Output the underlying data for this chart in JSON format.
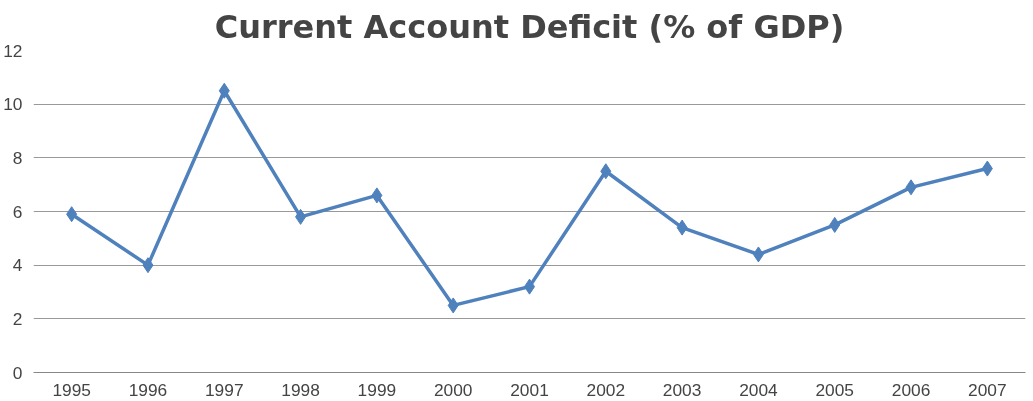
{
  "chart_data": {
    "type": "line",
    "title": "Current Account Deficit (% of GDP)",
    "categories": [
      "1995",
      "1996",
      "1997",
      "1998",
      "1999",
      "2000",
      "2001",
      "2002",
      "2003",
      "2004",
      "2005",
      "2006",
      "2007"
    ],
    "series": [
      {
        "color": "#4f81bd",
        "values": [
          5.9,
          4.0,
          10.5,
          5.8,
          6.6,
          2.5,
          3.2,
          7.5,
          5.4,
          4.4,
          5.5,
          6.9,
          7.6
        ]
      }
    ],
    "ylim": [
      0,
      12
    ],
    "yticks": [
      0,
      2,
      4,
      6,
      8,
      10,
      12
    ],
    "grid": "y",
    "marker": "diamond",
    "line_style": "solid"
  }
}
